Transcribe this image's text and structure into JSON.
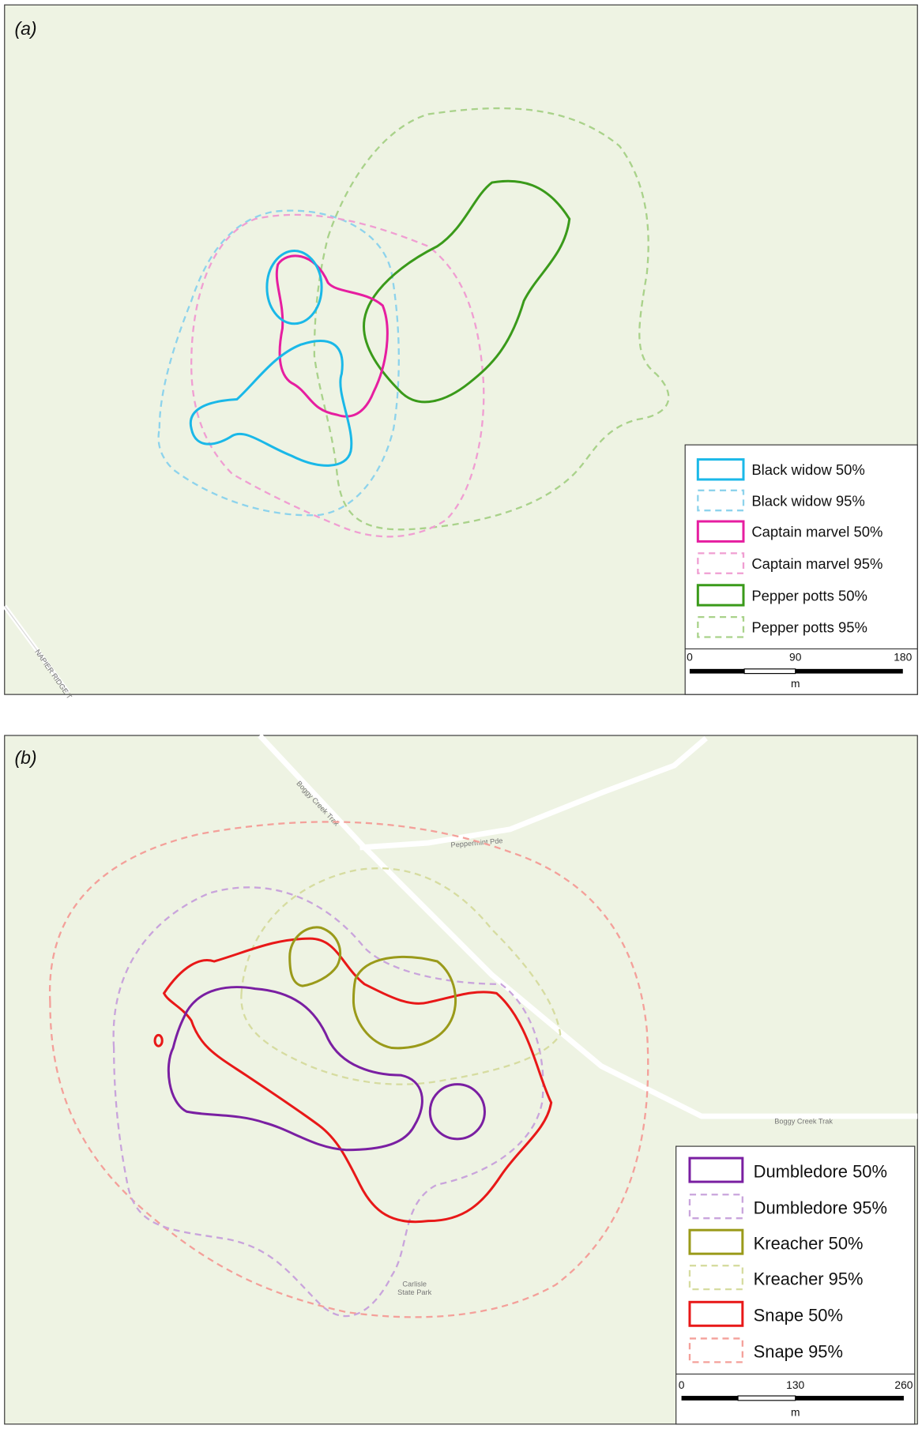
{
  "panels": [
    {
      "label": "(a)",
      "legend": [
        "Black widow 50%",
        "Black widow 95%",
        "Captain marvel 50%",
        "Captain marvel 95%",
        "Pepper potts 50%",
        "Pepper potts 95%"
      ],
      "scale": {
        "labels": [
          "0",
          "90",
          "180"
        ],
        "unit": "m"
      },
      "road_labels": [
        "NAPIER RIDGE T"
      ]
    },
    {
      "label": "(b)",
      "legend": [
        "Dumbledore 50%",
        "Dumbledore 95%",
        "Kreacher 50%",
        "Kreacher 95%",
        "Snape 50%",
        "Snape 95%"
      ],
      "scale": {
        "labels": [
          "0",
          "130",
          "260"
        ],
        "unit": "m"
      },
      "road_labels": [
        "Boggy Creek Trak",
        "Peppermint Pde",
        "Boggy Creek Trak",
        "Carlisle",
        "State Park"
      ]
    }
  ]
}
